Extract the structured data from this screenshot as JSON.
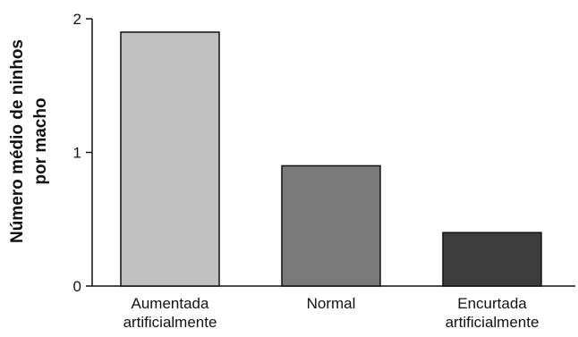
{
  "chart_data": {
    "type": "bar",
    "categories": [
      "Aumentada\nartificialmente",
      "Normal",
      "Encurtada\nartificialmente"
    ],
    "values": [
      1.9,
      0.9,
      0.4
    ],
    "colors": [
      "#c0c0c0",
      "#7a7a7a",
      "#3c3c3c"
    ],
    "ylabel": "Número médio de ninhos\npor macho",
    "ylim": [
      0,
      2
    ],
    "yticks": [
      0,
      1,
      2
    ],
    "grid": false
  }
}
